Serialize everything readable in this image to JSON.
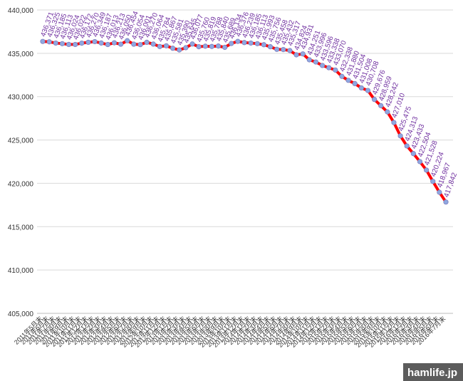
{
  "chart_data": {
    "type": "line",
    "categories": [
      "2011年5月末",
      "2011年6月末",
      "2011年7月末",
      "2011年8月末",
      "2011年9月末",
      "2011年10月末",
      "2011年11月末",
      "2011年12月末",
      "2012年1月末",
      "2012年2月末",
      "2012年3月末",
      "2012年4月末",
      "2012年5月末",
      "2012年6月末",
      "2012年7月末",
      "2012年8月末",
      "2012年9月末",
      "2012年10月末",
      "2012年11月末",
      "2012年12月末",
      "2013年1月末",
      "2013年2月末",
      "2013年3月末",
      "2013年4月末",
      "2013年5月末",
      "2013年6月末",
      "2013年7月末",
      "2013年8月末",
      "2013年9月末",
      "2013年10月末",
      "2013年11月末",
      "2013年12月末",
      "2014年1月末",
      "2014年2月末",
      "2014年3月末",
      "2014年4月末",
      "2014年5月末",
      "2014年6月末",
      "2014年7月末",
      "2014年8月末",
      "2014年9月末",
      "2014年10月末",
      "2014年11月末",
      "2014年12月末",
      "2015年1月末",
      "2015年2月末",
      "2015年3月末",
      "2015年4月末",
      "2015年5月末",
      "2015年6月末",
      "2015年7月末",
      "2015年8月末",
      "2015年9月末",
      "2015年10月末",
      "2015年11月末",
      "2015年12月末",
      "2016年1月末",
      "2016年2月末",
      "2016年3月末",
      "2016年4月末",
      "2016年5月末",
      "2016年6月末",
      "2016年7月末"
    ],
    "series": [
      {
        "color": "#ff0000",
        "marker_color": "#8fa8e0",
        "values": [
          436371,
          436325,
          436185,
          436113,
          436024,
          436022,
          436172,
          436270,
          436349,
          436187,
          436013,
          436213,
          436050,
          436454,
          436054,
          436001,
          436270,
          436064,
          435784,
          435867,
          435581,
          435390,
          435645,
          436077,
          435760,
          435819,
          435788,
          435840,
          435689,
          436134,
          436376,
          436239,
          436185,
          436113,
          435993,
          435756,
          435458,
          435432,
          435317,
          434824,
          434931,
          434251,
          433996,
          433596,
          433338,
          433070,
          432338,
          431880,
          431504,
          431008,
          430708,
          429676,
          428959,
          428242,
          427010,
          425475,
          424313,
          423433,
          422504,
          421528,
          420224,
          418967,
          417842
        ],
        "value_labels": [
          "436,371",
          "436,325",
          "436,185",
          "436,113",
          "436,024",
          "436,022",
          "436,172",
          "436,270",
          "436,349",
          "436,187",
          "436,013",
          "436,213",
          "436,050",
          "436,454",
          "436,054",
          "436,001",
          "436,270",
          "436,064",
          "435,784",
          "435,867",
          "435,581",
          "435,390",
          "435,645",
          "436,077",
          "435,760",
          "435,819",
          "435,788",
          "435,840",
          "435,689",
          "436,134",
          "436,376",
          "436,239",
          "436,185",
          "436,113",
          "435,993",
          "435,756",
          "435,458",
          "435,432",
          "435,317",
          "434,824",
          "434,931",
          "434,251",
          "433,996",
          "433,596",
          "433,338",
          "433,070",
          "432,338",
          "431,880",
          "431,504",
          "431,008",
          "430,708",
          "429,676",
          "428,959",
          "428,242",
          "427,010",
          "425,475",
          "424,313",
          "423,433",
          "422,504",
          "421,528",
          "420,224",
          "418,967",
          "417,842"
        ]
      }
    ],
    "ylim": [
      405000,
      440000
    ],
    "yticks": [
      {
        "value": 405000,
        "label": "405,000"
      },
      {
        "value": 410000,
        "label": "410,000"
      },
      {
        "value": 415000,
        "label": "415,000"
      },
      {
        "value": 420000,
        "label": "420,000"
      },
      {
        "value": 425000,
        "label": "425,000"
      },
      {
        "value": 430000,
        "label": "430,000"
      },
      {
        "value": 435000,
        "label": "435,000"
      },
      {
        "value": 440000,
        "label": "440,000"
      }
    ],
    "grid": true,
    "data_label_color": "#7030a0",
    "watermark": "hamlife.jp"
  }
}
